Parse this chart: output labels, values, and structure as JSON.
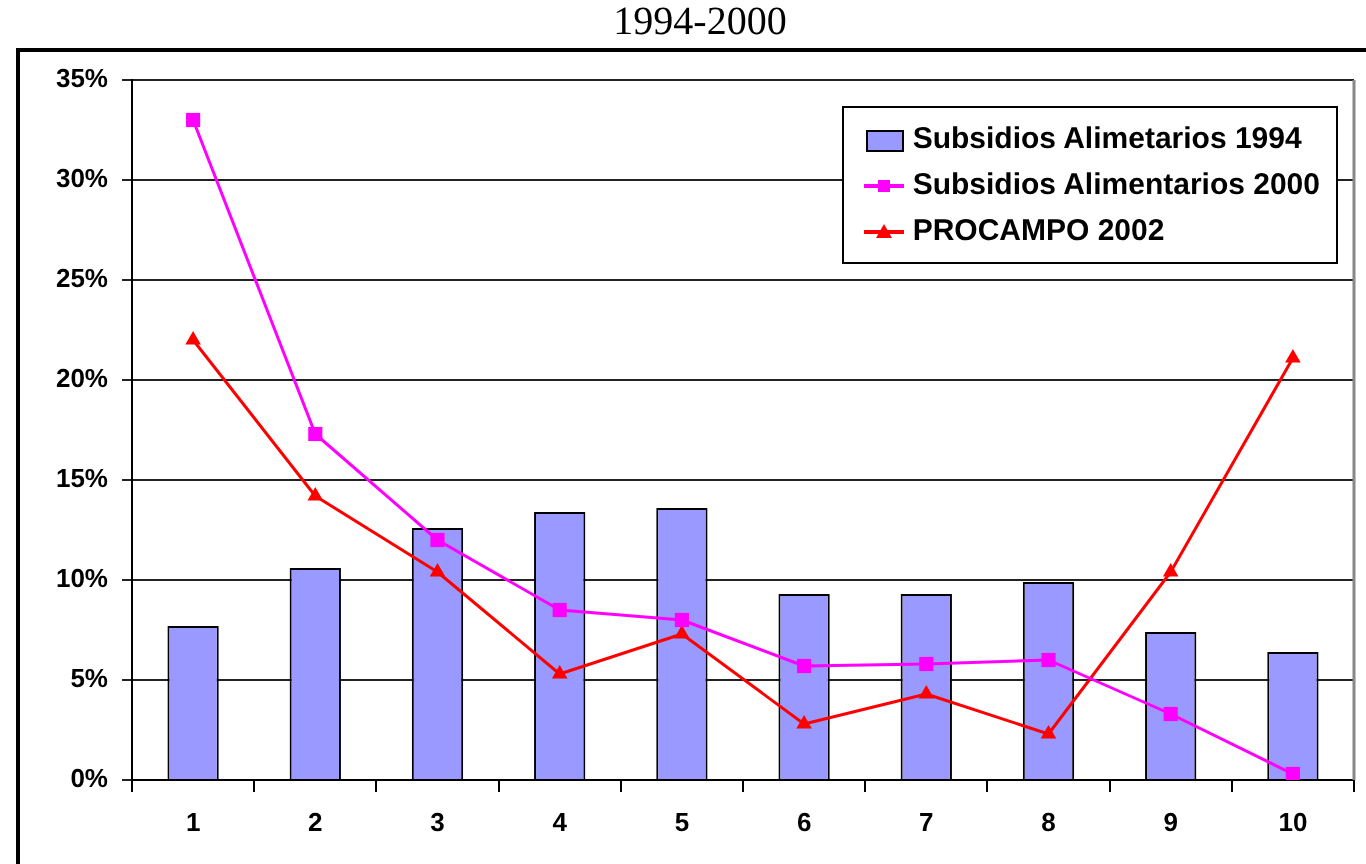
{
  "chart_data": {
    "type": "bar",
    "title": "1994-2000",
    "categories": [
      "1",
      "2",
      "3",
      "4",
      "5",
      "6",
      "7",
      "8",
      "9",
      "10"
    ],
    "series": [
      {
        "name": "Subsidios Alimetarios 1994",
        "color": "#9999ff",
        "values": [
          7.7,
          10.6,
          12.6,
          13.4,
          13.6,
          9.3,
          9.3,
          9.9,
          7.4,
          6.4
        ]
      },
      {
        "name": "Subsidios Alimentarios 2000",
        "type": "line",
        "color": "#ff00ff",
        "marker": "square",
        "values": [
          33.0,
          17.3,
          12.0,
          8.5,
          8.0,
          5.7,
          5.8,
          6.0,
          3.3,
          0.3
        ]
      },
      {
        "name": "PROCAMPO 2002",
        "type": "line",
        "color": "#ff0000",
        "marker": "triangle",
        "values": [
          22.0,
          14.2,
          10.4,
          5.3,
          7.3,
          2.8,
          4.3,
          2.3,
          10.4,
          21.1
        ]
      }
    ],
    "ylim": [
      0,
      35
    ],
    "yticks": [
      {
        "value": 0,
        "label": "0%"
      },
      {
        "value": 5,
        "label": "5%"
      },
      {
        "value": 10,
        "label": "10%"
      },
      {
        "value": 15,
        "label": "15%"
      },
      {
        "value": 20,
        "label": "20%"
      },
      {
        "value": 25,
        "label": "25%"
      },
      {
        "value": 30,
        "label": "30%"
      },
      {
        "value": 35,
        "label": "35%"
      }
    ],
    "grid": "y",
    "legend": "top right"
  }
}
